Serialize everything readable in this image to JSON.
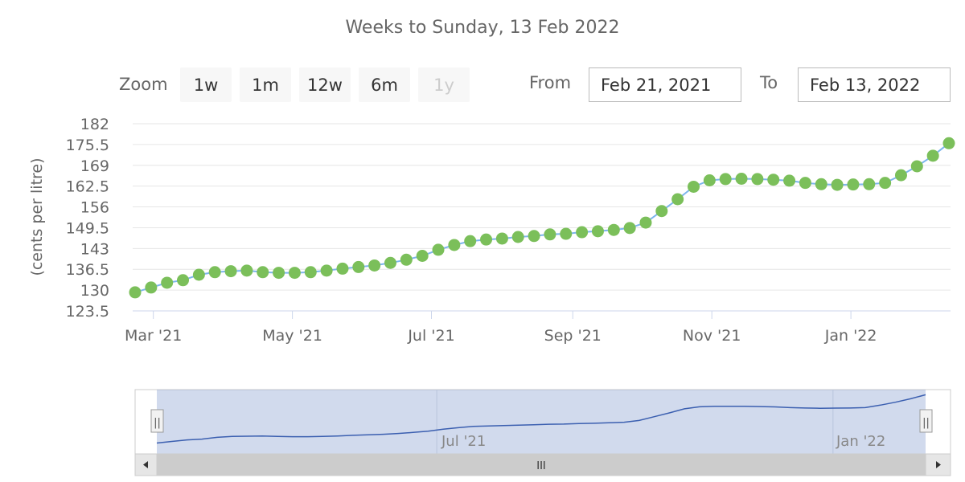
{
  "subtitle": "Weeks to Sunday, 13 Feb 2022",
  "zoom": {
    "label": "Zoom",
    "buttons": [
      {
        "label": "1w",
        "enabled": true
      },
      {
        "label": "1m",
        "enabled": true
      },
      {
        "label": "12w",
        "enabled": true
      },
      {
        "label": "6m",
        "enabled": true
      },
      {
        "label": "1y",
        "enabled": false
      }
    ]
  },
  "range": {
    "from_label": "From",
    "from_value": "Feb 21, 2021",
    "to_label": "To",
    "to_value": "Feb 13, 2022"
  },
  "navigator": {
    "labels": [
      "Jul '21",
      "Jan '22"
    ],
    "scroll_grip": "III",
    "handle_grip": "||"
  },
  "colors": {
    "line": "#7cb5ec",
    "marker": "#7bbf5a",
    "grid": "#e6e6e6",
    "nav_mask": "rgba(102,133,194,0.3)",
    "nav_line": "#3b5fb0"
  },
  "chart_data": {
    "type": "line",
    "ylabel": "(cents per litre)",
    "ylim": [
      123.5,
      182
    ],
    "yticks": [
      "123.5",
      "130",
      "136.5",
      "143",
      "149.5",
      "156",
      "162.5",
      "169",
      "175.5",
      "182"
    ],
    "xlim": [
      "2021-02-21",
      "2022-02-13"
    ],
    "xticks": [
      {
        "date": "2021-03-01",
        "label": "Mar '21"
      },
      {
        "date": "2021-05-01",
        "label": "May '21"
      },
      {
        "date": "2021-07-01",
        "label": "Jul '21"
      },
      {
        "date": "2021-09-01",
        "label": "Sep '21"
      },
      {
        "date": "2021-11-01",
        "label": "Nov '21"
      },
      {
        "date": "2022-01-01",
        "label": "Jan '22"
      }
    ],
    "grid": true,
    "legend": false,
    "series": [
      {
        "x": [
          "2021-02-21",
          "2021-02-28",
          "2021-03-07",
          "2021-03-14",
          "2021-03-21",
          "2021-03-28",
          "2021-04-04",
          "2021-04-11",
          "2021-04-18",
          "2021-04-25",
          "2021-05-02",
          "2021-05-09",
          "2021-05-16",
          "2021-05-23",
          "2021-05-30",
          "2021-06-06",
          "2021-06-13",
          "2021-06-20",
          "2021-06-27",
          "2021-07-04",
          "2021-07-11",
          "2021-07-18",
          "2021-07-25",
          "2021-08-01",
          "2021-08-08",
          "2021-08-15",
          "2021-08-22",
          "2021-08-29",
          "2021-09-05",
          "2021-09-12",
          "2021-09-19",
          "2021-09-26",
          "2021-10-03",
          "2021-10-10",
          "2021-10-17",
          "2021-10-24",
          "2021-10-31",
          "2021-11-07",
          "2021-11-14",
          "2021-11-21",
          "2021-11-28",
          "2021-12-05",
          "2021-12-12",
          "2021-12-19",
          "2021-12-26",
          "2022-01-02",
          "2022-01-09",
          "2022-01-16",
          "2022-01-23",
          "2022-01-30",
          "2022-02-06",
          "2022-02-13"
        ],
        "y": [
          129.3,
          130.8,
          132.3,
          133.1,
          134.8,
          135.6,
          135.9,
          136.1,
          135.6,
          135.4,
          135.4,
          135.6,
          136.1,
          136.7,
          137.2,
          137.7,
          138.5,
          139.5,
          140.7,
          142.6,
          144.1,
          145.3,
          145.8,
          146.1,
          146.6,
          146.9,
          147.4,
          147.6,
          148.1,
          148.4,
          148.8,
          149.4,
          151.1,
          154.7,
          158.4,
          162.3,
          164.3,
          164.7,
          164.8,
          164.7,
          164.5,
          164.2,
          163.5,
          163.1,
          162.9,
          163.0,
          163.1,
          163.5,
          165.9,
          168.7,
          172.0,
          175.9
        ]
      }
    ]
  }
}
